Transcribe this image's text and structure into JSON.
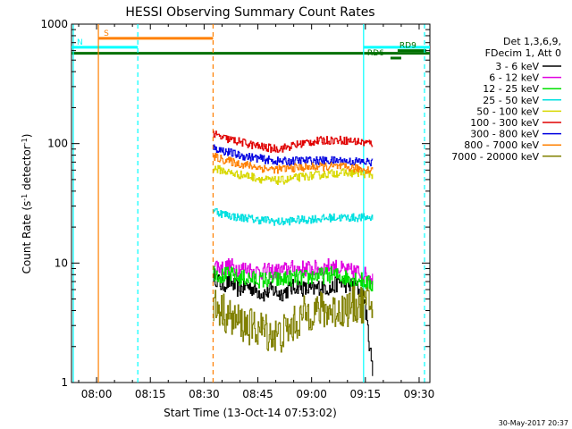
{
  "chart_data": {
    "type": "line",
    "title": "HESSI Observing Summary Count Rates",
    "xlabel": "Start Time (13-Oct-14 07:53:02)",
    "ylabel_main": "Count Rate (s",
    "ylabel_sup1": "-1",
    "ylabel_mid": " detector",
    "ylabel_sup2": "-1",
    "ylabel_end": ")",
    "yscale": "log",
    "ylim": [
      1,
      1000
    ],
    "xlim_min": [
      473,
      573
    ],
    "x_ticks": [
      {
        "min": 480,
        "label": "08:00"
      },
      {
        "min": 495,
        "label": "08:15"
      },
      {
        "min": 510,
        "label": "08:30"
      },
      {
        "min": 525,
        "label": "08:45"
      },
      {
        "min": 540,
        "label": "09:00"
      },
      {
        "min": 555,
        "label": "09:15"
      },
      {
        "min": 570,
        "label": "09:30"
      }
    ],
    "y_ticks": [
      {
        "v": 1,
        "label": "1"
      },
      {
        "v": 10,
        "label": "10"
      },
      {
        "v": 100,
        "label": "100"
      },
      {
        "v": 1000,
        "label": "1000"
      }
    ],
    "data_start_min": 512.5,
    "data_end_min": 557,
    "legend_header": [
      "Det 1,3,6,9,",
      "FDecim 1, Att 0"
    ],
    "legend_position": "right",
    "series": [
      {
        "name": "3 - 6 keV",
        "color": "#000000",
        "values": [
          8,
          6.5,
          7,
          6,
          6.5,
          6,
          5.5,
          6,
          5.5,
          6,
          6.5,
          6,
          6,
          6.5,
          6,
          7,
          6.5,
          6.5,
          5,
          1.2
        ]
      },
      {
        "name": "6 - 12 keV",
        "color": "#e000e0",
        "values": [
          10,
          9,
          9.5,
          9,
          9,
          8.5,
          8.5,
          8.5,
          8.5,
          9,
          9,
          9,
          9,
          9,
          9.5,
          9,
          8.5,
          8.5,
          8,
          7.5
        ]
      },
      {
        "name": "12 - 25 keV",
        "color": "#00e000",
        "values": [
          8.5,
          7.8,
          8,
          7.5,
          7.5,
          7.3,
          7.2,
          7.3,
          7.2,
          7.5,
          7.5,
          7.5,
          7.8,
          7.8,
          8,
          7.8,
          7.5,
          7.5,
          7,
          6.5
        ]
      },
      {
        "name": "25 - 50 keV",
        "color": "#00e0e0",
        "values": [
          28,
          26,
          25,
          24,
          24,
          23,
          23,
          22.5,
          22,
          22.5,
          23,
          23,
          23.5,
          23.5,
          24,
          24,
          24,
          24,
          24,
          24
        ]
      },
      {
        "name": "50 - 100 keV",
        "color": "#d8d800",
        "values": [
          62,
          60,
          57,
          55,
          54,
          52,
          50,
          49,
          49,
          50,
          52,
          53,
          54,
          55,
          56,
          57,
          57,
          57,
          56,
          55
        ]
      },
      {
        "name": "100 - 300 keV",
        "color": "#e00000",
        "values": [
          120,
          112,
          108,
          104,
          100,
          96,
          93,
          91,
          91,
          94,
          98,
          102,
          104,
          106,
          107,
          107,
          106,
          104,
          102,
          100
        ]
      },
      {
        "name": "300 - 800 keV",
        "color": "#0000e0",
        "values": [
          92,
          88,
          84,
          80,
          78,
          76,
          74,
          72,
          71,
          71,
          72,
          72,
          72,
          72,
          72,
          72,
          71,
          71,
          70,
          70
        ]
      },
      {
        "name": "800 - 7000 keV",
        "color": "#ff8000",
        "values": [
          78,
          74,
          71,
          68,
          66,
          64,
          62,
          61,
          61,
          62,
          63,
          63,
          64,
          64,
          64,
          64,
          63,
          62,
          61,
          60
        ]
      },
      {
        "name": "7000 - 20000 keV",
        "color": "#808000",
        "values": [
          4.5,
          4,
          3.5,
          3.2,
          3,
          2.8,
          2.8,
          2.5,
          2.5,
          2.8,
          3.2,
          3.8,
          4,
          4,
          4,
          4,
          4.2,
          4.5,
          4.5,
          4.5
        ]
      }
    ],
    "state_lines": [
      {
        "label": "S",
        "color": "#ff8000",
        "y": 760,
        "x_start": 480.5,
        "x_end": 512.5
      },
      {
        "label": "N",
        "color": "#00ffff",
        "y": 640,
        "x_start": 473,
        "x_end": 491.5
      },
      {
        "label": "",
        "color": "#00ffff",
        "y": 640,
        "x_start": 554.5,
        "x_end": 573
      },
      {
        "label": "",
        "color": "#007000",
        "y": 570,
        "x_start": 473,
        "x_end": 573
      },
      {
        "label": "RD9",
        "color": "#007000",
        "y": 600,
        "x_start": 564,
        "x_end": 572
      },
      {
        "label": "RD6",
        "color": "#007000",
        "y": 520,
        "x_start": 562,
        "x_end": 565
      }
    ],
    "vlines": [
      {
        "min": 473.5,
        "color": "#00ffff",
        "style": "solid"
      },
      {
        "min": 480.5,
        "color": "#ff8000",
        "style": "solid"
      },
      {
        "min": 491.5,
        "color": "#00ffff",
        "style": "dashed"
      },
      {
        "min": 512.5,
        "color": "#ff8000",
        "style": "dashed"
      },
      {
        "min": 554.5,
        "color": "#00ffff",
        "style": "solid"
      },
      {
        "min": 571.5,
        "color": "#00ffff",
        "style": "dashed"
      }
    ],
    "footer_stamp": "30-May-2017 20:37"
  }
}
